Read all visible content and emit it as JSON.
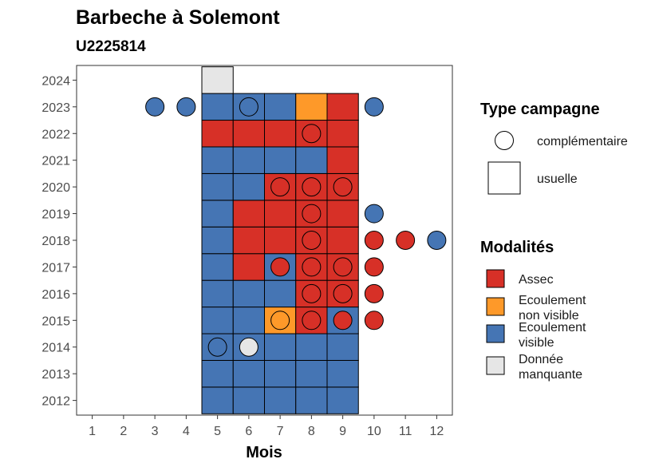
{
  "chart_data": {
    "type": "heatmap",
    "title": "Barbeche à Solemont",
    "subtitle": "U2225814",
    "xlabel": "Mois",
    "ylabel": "",
    "x_ticks": [
      "1",
      "2",
      "3",
      "4",
      "5",
      "6",
      "7",
      "8",
      "9",
      "10",
      "11",
      "12"
    ],
    "y_ticks": [
      "2012",
      "2013",
      "2014",
      "2015",
      "2016",
      "2017",
      "2018",
      "2019",
      "2020",
      "2021",
      "2022",
      "2023",
      "2024"
    ],
    "xlim": [
      0.5,
      12.5
    ],
    "ylim": [
      2011.45,
      2024.55
    ],
    "grid": false,
    "legend_placement": "right",
    "legend_shape": {
      "title": "Type campagne",
      "items": [
        {
          "key": "complementaire",
          "label": "complémentaire",
          "shape": "circle"
        },
        {
          "key": "usuelle",
          "label": "usuelle",
          "shape": "square"
        }
      ]
    },
    "legend_color": {
      "title": "Modalités",
      "items": [
        {
          "key": "assec",
          "label_lines": [
            "Assec"
          ],
          "color": "#d73027"
        },
        {
          "key": "nonvisible",
          "label_lines": [
            "Ecoulement",
            "non visible"
          ],
          "color": "#fe9929"
        },
        {
          "key": "visible",
          "label_lines": [
            "Ecoulement",
            "visible"
          ],
          "color": "#4575b4"
        },
        {
          "key": "manquante",
          "label_lines": [
            "Donnée",
            "manquante"
          ],
          "color": "#e6e6e6"
        }
      ]
    },
    "usuelle": [
      {
        "year": 2012,
        "values": {
          "5": "visible",
          "6": "visible",
          "7": "visible",
          "8": "visible",
          "9": "visible"
        }
      },
      {
        "year": 2013,
        "values": {
          "5": "visible",
          "6": "visible",
          "7": "visible",
          "8": "visible",
          "9": "visible"
        }
      },
      {
        "year": 2014,
        "values": {
          "5": "visible",
          "6": "visible",
          "7": "visible",
          "8": "visible",
          "9": "visible"
        }
      },
      {
        "year": 2015,
        "values": {
          "5": "visible",
          "6": "visible",
          "7": "nonvisible",
          "8": "assec",
          "9": "visible"
        }
      },
      {
        "year": 2016,
        "values": {
          "5": "visible",
          "6": "visible",
          "7": "visible",
          "8": "assec",
          "9": "assec"
        }
      },
      {
        "year": 2017,
        "values": {
          "5": "visible",
          "6": "assec",
          "7": "visible",
          "8": "assec",
          "9": "assec"
        }
      },
      {
        "year": 2018,
        "values": {
          "5": "visible",
          "6": "assec",
          "7": "assec",
          "8": "assec",
          "9": "assec"
        }
      },
      {
        "year": 2019,
        "values": {
          "5": "visible",
          "6": "assec",
          "7": "assec",
          "8": "assec",
          "9": "assec"
        }
      },
      {
        "year": 2020,
        "values": {
          "5": "visible",
          "6": "visible",
          "7": "assec",
          "8": "assec",
          "9": "assec"
        }
      },
      {
        "year": 2021,
        "values": {
          "5": "visible",
          "6": "visible",
          "7": "visible",
          "8": "visible",
          "9": "assec"
        }
      },
      {
        "year": 2022,
        "values": {
          "5": "assec",
          "6": "assec",
          "7": "assec",
          "8": "assec",
          "9": "assec"
        }
      },
      {
        "year": 2023,
        "values": {
          "5": "visible",
          "6": "visible",
          "7": "visible",
          "8": "nonvisible",
          "9": "assec"
        }
      },
      {
        "year": 2024,
        "values": {
          "5": "manquante"
        }
      }
    ],
    "complementaire": [
      {
        "year": 2014,
        "values": {
          "5": "visible",
          "6": "manquante"
        }
      },
      {
        "year": 2015,
        "values": {
          "7": "nonvisible",
          "8": "assec",
          "9": "assec",
          "10": "assec"
        }
      },
      {
        "year": 2016,
        "values": {
          "8": "assec",
          "9": "assec",
          "10": "assec"
        }
      },
      {
        "year": 2017,
        "values": {
          "7": "assec",
          "8": "assec",
          "9": "assec",
          "10": "assec"
        }
      },
      {
        "year": 2018,
        "values": {
          "8": "assec",
          "10": "assec",
          "11": "assec",
          "12": "visible"
        }
      },
      {
        "year": 2019,
        "values": {
          "8": "assec",
          "10": "visible"
        }
      },
      {
        "year": 2020,
        "values": {
          "7": "assec",
          "8": "assec",
          "9": "assec"
        }
      },
      {
        "year": 2022,
        "values": {
          "8": "assec"
        }
      },
      {
        "year": 2023,
        "values": {
          "3": "visible",
          "4": "visible",
          "6": "visible",
          "10": "visible"
        }
      }
    ]
  }
}
